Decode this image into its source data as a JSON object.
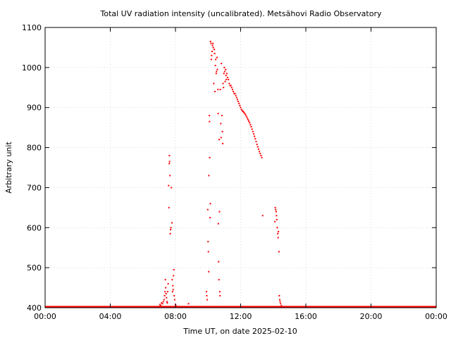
{
  "chart_data": {
    "type": "scatter",
    "title": "Total UV radiation intensity (uncalibrated). Metsähovi Radio Observatory",
    "xlabel": "Time UT, on date 2025-02-10",
    "ylabel": "Arbitrary unit",
    "xlim": [
      0,
      24
    ],
    "ylim": [
      400,
      1100
    ],
    "x_unit": "hours UT",
    "x_ticks": [
      {
        "value": 0,
        "label": "00:00"
      },
      {
        "value": 4,
        "label": "04:00"
      },
      {
        "value": 8,
        "label": "08:00"
      },
      {
        "value": 12,
        "label": "12:00"
      },
      {
        "value": 16,
        "label": "16:00"
      },
      {
        "value": 20,
        "label": "20:00"
      },
      {
        "value": 24,
        "label": "00:00"
      }
    ],
    "y_ticks": [
      {
        "value": 400,
        "label": "400"
      },
      {
        "value": 500,
        "label": "500"
      },
      {
        "value": 600,
        "label": "600"
      },
      {
        "value": 700,
        "label": "700"
      },
      {
        "value": 800,
        "label": "800"
      },
      {
        "value": 900,
        "label": "900"
      },
      {
        "value": 1000,
        "label": "1000"
      },
      {
        "value": 1100,
        "label": "1100"
      }
    ],
    "grid": true,
    "legend": "none",
    "marker_color": "#ff0000",
    "series": [
      {
        "baseline": {
          "value": 401,
          "x_start": 0,
          "x_end": 24
        },
        "points": [
          [
            7.0,
            403
          ],
          [
            7.05,
            408
          ],
          [
            7.1,
            405
          ],
          [
            7.15,
            412
          ],
          [
            7.2,
            410
          ],
          [
            7.25,
            415
          ],
          [
            7.3,
            420
          ],
          [
            7.33,
            430
          ],
          [
            7.36,
            440
          ],
          [
            7.38,
            470
          ],
          [
            7.4,
            450
          ],
          [
            7.42,
            435
          ],
          [
            7.45,
            425
          ],
          [
            7.48,
            415
          ],
          [
            7.5,
            412
          ],
          [
            7.52,
            440
          ],
          [
            7.55,
            460
          ],
          [
            7.58,
            705
          ],
          [
            7.6,
            650
          ],
          [
            7.62,
            760
          ],
          [
            7.63,
            780
          ],
          [
            7.64,
            765
          ],
          [
            7.66,
            730
          ],
          [
            7.68,
            585
          ],
          [
            7.7,
            595
          ],
          [
            7.72,
            600
          ],
          [
            7.75,
            700
          ],
          [
            7.78,
            612
          ],
          [
            7.8,
            470
          ],
          [
            7.82,
            440
          ],
          [
            7.84,
            455
          ],
          [
            7.86,
            445
          ],
          [
            7.88,
            480
          ],
          [
            7.9,
            495
          ],
          [
            7.92,
            430
          ],
          [
            7.95,
            420
          ],
          [
            8.0,
            408
          ],
          [
            8.05,
            404
          ],
          [
            8.8,
            410
          ],
          [
            9.9,
            440
          ],
          [
            9.92,
            430
          ],
          [
            9.95,
            420
          ],
          [
            9.98,
            645
          ],
          [
            10.0,
            565
          ],
          [
            10.02,
            540
          ],
          [
            10.04,
            490
          ],
          [
            10.05,
            730
          ],
          [
            10.08,
            880
          ],
          [
            10.09,
            865
          ],
          [
            10.1,
            775
          ],
          [
            10.12,
            625
          ],
          [
            10.14,
            660
          ],
          [
            10.15,
            1065
          ],
          [
            10.18,
            1060
          ],
          [
            10.2,
            1020
          ],
          [
            10.22,
            1030
          ],
          [
            10.25,
            1040
          ],
          [
            10.27,
            1055
          ],
          [
            10.3,
            1060
          ],
          [
            10.32,
            1050
          ],
          [
            10.35,
            960
          ],
          [
            10.38,
            1045
          ],
          [
            10.4,
            1035
          ],
          [
            10.42,
            940
          ],
          [
            10.45,
            1005
          ],
          [
            10.47,
            1020
          ],
          [
            10.5,
            985
          ],
          [
            10.52,
            990
          ],
          [
            10.55,
            1025
          ],
          [
            10.57,
            995
          ],
          [
            10.6,
            945
          ],
          [
            10.62,
            885
          ],
          [
            10.63,
            610
          ],
          [
            10.65,
            515
          ],
          [
            10.67,
            470
          ],
          [
            10.68,
            820
          ],
          [
            10.7,
            640
          ],
          [
            10.72,
            440
          ],
          [
            10.73,
            430
          ],
          [
            10.75,
            945
          ],
          [
            10.78,
            860
          ],
          [
            10.8,
            825
          ],
          [
            10.82,
            1010
          ],
          [
            10.85,
            880
          ],
          [
            10.88,
            840
          ],
          [
            10.9,
            810
          ],
          [
            10.92,
            960
          ],
          [
            10.95,
            950
          ],
          [
            10.97,
            985
          ],
          [
            11.0,
            1000
          ],
          [
            11.02,
            990
          ],
          [
            11.05,
            965
          ],
          [
            11.08,
            995
          ],
          [
            11.1,
            980
          ],
          [
            11.12,
            970
          ],
          [
            11.15,
            985
          ],
          [
            11.2,
            975
          ],
          [
            11.25,
            970
          ],
          [
            11.3,
            960
          ],
          [
            11.35,
            955
          ],
          [
            11.4,
            955
          ],
          [
            11.45,
            950
          ],
          [
            11.5,
            945
          ],
          [
            11.55,
            940
          ],
          [
            11.6,
            935
          ],
          [
            11.65,
            935
          ],
          [
            11.7,
            930
          ],
          [
            11.75,
            925
          ],
          [
            11.8,
            920
          ],
          [
            11.85,
            915
          ],
          [
            11.9,
            910
          ],
          [
            11.95,
            905
          ],
          [
            12.0,
            900
          ],
          [
            12.05,
            895
          ],
          [
            12.1,
            892
          ],
          [
            12.15,
            890
          ],
          [
            12.2,
            888
          ],
          [
            12.25,
            885
          ],
          [
            12.3,
            882
          ],
          [
            12.35,
            878
          ],
          [
            12.4,
            874
          ],
          [
            12.45,
            870
          ],
          [
            12.5,
            866
          ],
          [
            12.55,
            862
          ],
          [
            12.6,
            857
          ],
          [
            12.65,
            852
          ],
          [
            12.7,
            846
          ],
          [
            12.75,
            840
          ],
          [
            12.8,
            834
          ],
          [
            12.85,
            828
          ],
          [
            12.9,
            822
          ],
          [
            12.95,
            815
          ],
          [
            13.0,
            808
          ],
          [
            13.05,
            802
          ],
          [
            13.1,
            796
          ],
          [
            13.15,
            790
          ],
          [
            13.2,
            785
          ],
          [
            13.25,
            780
          ],
          [
            13.3,
            775
          ],
          [
            13.35,
            630
          ],
          [
            14.1,
            615
          ],
          [
            14.12,
            650
          ],
          [
            14.15,
            645
          ],
          [
            14.18,
            640
          ],
          [
            14.2,
            630
          ],
          [
            14.22,
            620
          ],
          [
            14.25,
            600
          ],
          [
            14.28,
            585
          ],
          [
            14.3,
            575
          ],
          [
            14.32,
            590
          ],
          [
            14.35,
            540
          ],
          [
            14.37,
            430
          ],
          [
            14.4,
            420
          ],
          [
            14.42,
            415
          ],
          [
            14.45,
            410
          ],
          [
            14.5,
            405
          ]
        ]
      }
    ]
  }
}
